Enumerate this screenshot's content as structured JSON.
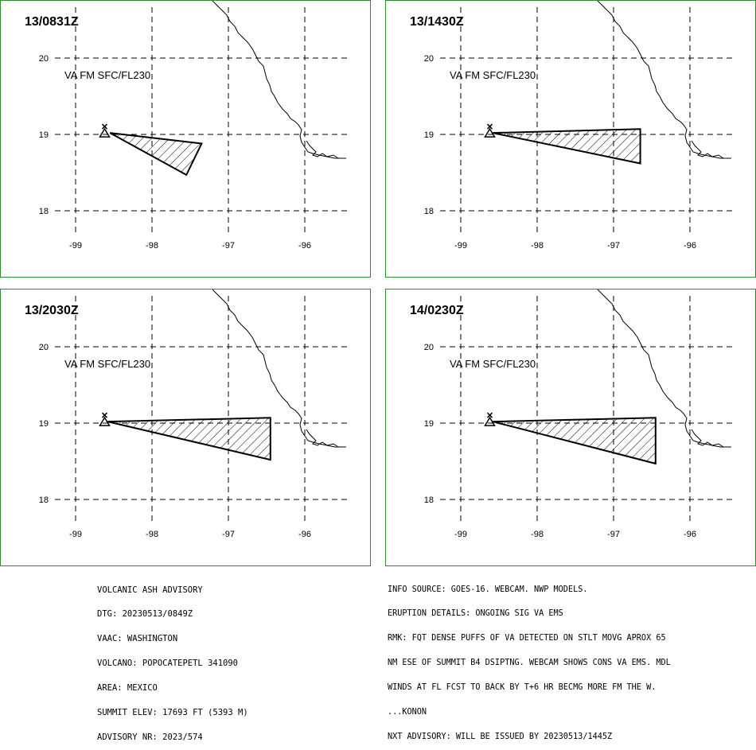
{
  "panels": [
    {
      "time": "13/0831Z",
      "level": "VA FM SFC/FL230",
      "polygon": [
        [
          -98.55,
          19.02
        ],
        [
          -97.35,
          18.88
        ],
        [
          -97.55,
          18.47
        ]
      ]
    },
    {
      "time": "13/1430Z",
      "level": "VA FM SFC/FL230",
      "polygon": [
        [
          -98.58,
          19.02
        ],
        [
          -96.65,
          19.07
        ],
        [
          -96.65,
          18.62
        ]
      ]
    },
    {
      "time": "13/2030Z",
      "level": "VA FM SFC/FL230",
      "polygon": [
        [
          -98.58,
          19.02
        ],
        [
          -96.45,
          19.07
        ],
        [
          -96.45,
          18.52
        ]
      ]
    },
    {
      "time": "14/0230Z",
      "level": "VA FM SFC/FL230",
      "polygon": [
        [
          -98.58,
          19.02
        ],
        [
          -96.45,
          19.07
        ],
        [
          -96.45,
          18.47
        ]
      ]
    }
  ],
  "axes": {
    "lon_ticks": [
      "-99",
      "-98",
      "-97",
      "-96"
    ],
    "lat_ticks": [
      "20",
      "19",
      "18"
    ],
    "lon_values": [
      -99,
      -98,
      -97,
      -96
    ],
    "lat_values": [
      20,
      19,
      18
    ]
  },
  "volcano": {
    "lon": -98.62,
    "lat": 19.02
  },
  "advisory_left": [
    "VOLCANIC ASH ADVISORY",
    "DTG: 20230513/0849Z",
    "VAAC: WASHINGTON",
    "VOLCANO: POPOCATEPETL 341090",
    "AREA: MEXICO",
    "SUMMIT ELEV: 17693 FT (5393 M)",
    "ADVISORY NR: 2023/574"
  ],
  "advisory_right": [
    "INFO SOURCE: GOES-16. WEBCAM. NWP MODELS.",
    "ERUPTION DETAILS: ONGOING SIG VA EMS",
    "RMK: FQT DENSE PUFFS OF VA DETECTED ON STLT MOVG APROX 65",
    "NM ESE OF SUMMIT B4 DSIPTNG. WEBCAM SHOWS CONS VA EMS. MDL",
    "WINDS AT FL FCST TO BACK BY T+6 HR BECMG MORE FM THE W.",
    "...KONON",
    "NXT ADVISORY: WILL BE ISSUED BY 20230513/1445Z"
  ],
  "colors": {
    "border": "#2e8b2e",
    "grid": "#000000"
  }
}
